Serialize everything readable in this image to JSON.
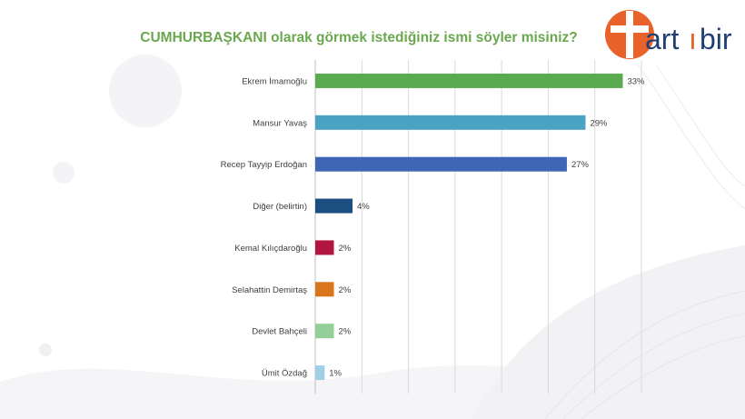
{
  "chart_data": {
    "type": "bar",
    "orientation": "horizontal",
    "title": "CUMHURBAŞKANI olarak görmek istediğiniz ismi söyler misiniz?",
    "categories": [
      "Ekrem İmamoğlu",
      "Mansur Yavaş",
      "Recep Tayyip Erdoğan",
      "Diğer (belirtin)",
      "Kemal Kılıçdaroğlu",
      "Selahattin Demirtaş",
      "Devlet Bahçeli",
      "Ümit Özdağ"
    ],
    "values": [
      33,
      29,
      27,
      4,
      2,
      2,
      2,
      1
    ],
    "value_labels": [
      "33%",
      "29%",
      "27%",
      "4%",
      "2%",
      "2%",
      "2%",
      "1%"
    ],
    "colors": [
      "#5aaa4f",
      "#4ba3c3",
      "#3f66b5",
      "#1c4e80",
      "#b0163f",
      "#d9761b",
      "#93cf96",
      "#9fd0e6"
    ],
    "xlim": [
      0,
      35
    ],
    "grid": true,
    "legend": "none"
  },
  "logo": {
    "text_left": "art",
    "text_mid": "ı",
    "text_right": "bir",
    "colors": {
      "orange": "#e8622a",
      "blue": "#1f3f73",
      "plus": "#ffffff"
    }
  }
}
